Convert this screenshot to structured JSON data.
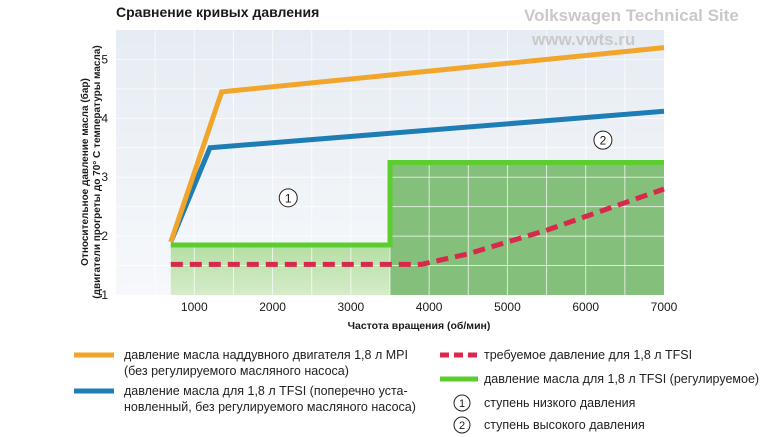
{
  "chart_data": {
    "type": "line",
    "title": "Сравнение кривых давления",
    "xlabel": "Частота вращения (об/мин)",
    "ylabel_line1": "Относительное давление масла (бар)",
    "ylabel_line2": "(двигатели прогреты до 70° С температуры масла)",
    "xlim": [
      0,
      7000
    ],
    "ylim": [
      1,
      5.5
    ],
    "xticks": [
      1000,
      2000,
      3000,
      4000,
      5000,
      6000,
      7000
    ],
    "yticks": [
      1,
      2,
      3,
      4,
      5
    ],
    "grid": true,
    "series": [
      {
        "name": "давление масла наддувного двигателя 1,8 л MPI\n(без регулируемого масляного насоса)",
        "color": "#f2a52b",
        "style": "solid",
        "x": [
          700,
          1350,
          7000
        ],
        "y": [
          1.9,
          4.45,
          5.2
        ]
      },
      {
        "name": "давление масла для 1,8 л TFSI (поперечно уста-\nновленный, без регулируемого масляного насоса)",
        "color": "#1f7db5",
        "style": "solid",
        "x": [
          700,
          1200,
          7000
        ],
        "y": [
          1.9,
          3.5,
          4.12
        ]
      },
      {
        "name": "требуемое давление для 1,8 л TFSI",
        "color": "#d8284c",
        "style": "dashed",
        "x": [
          700,
          3900,
          4500,
          5500,
          7000
        ],
        "y": [
          1.52,
          1.52,
          1.7,
          2.1,
          2.8
        ]
      },
      {
        "name": "давление масла для 1,8 л TFSI (регулируемое)",
        "color": "#5ccd2f",
        "style": "solid",
        "x": [
          700,
          3500,
          3500,
          7000
        ],
        "y": [
          1.85,
          1.85,
          3.25,
          3.25
        ]
      }
    ],
    "annotations": [
      {
        "text": "1",
        "x": 2200,
        "y": 2.65
      },
      {
        "text": "2",
        "x": 6220,
        "y": 3.63
      }
    ],
    "legend_markers": [
      {
        "text": "1",
        "label": "ступень низкого давления"
      },
      {
        "text": "2",
        "label": "ступень высокого давления"
      }
    ]
  },
  "watermark": {
    "line1": "Volkswagen Technical Site",
    "line2": "www.vwts.ru"
  }
}
